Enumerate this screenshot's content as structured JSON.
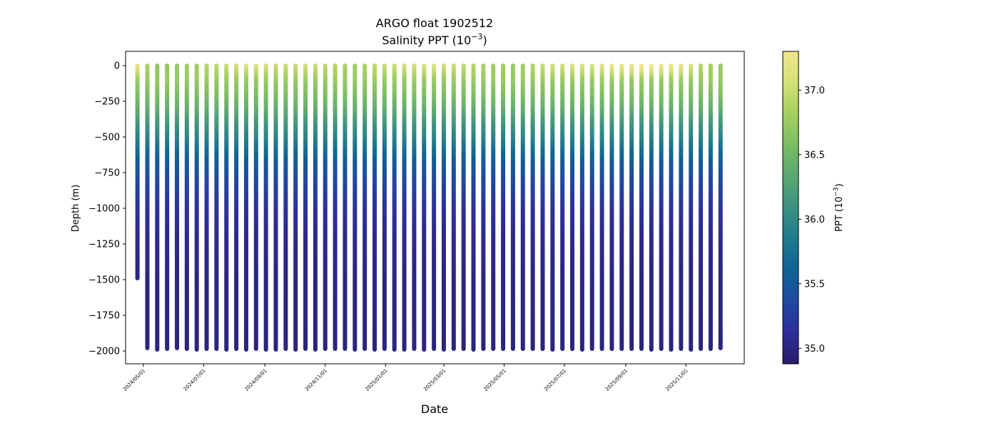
{
  "chart_data": {
    "type": "scatter",
    "title": "ARGO float 1902512",
    "subtitle": {
      "prefix": "Salinity PPT (10",
      "exponent": "−3",
      "suffix": ")"
    },
    "xlabel": "Date",
    "ylabel": "Depth (m)",
    "colorbar_label": {
      "prefix": "PPT (10",
      "exponent": "−3",
      "suffix": ")"
    },
    "x_tick_labels": [
      "2024/05/01",
      "2024/07/01",
      "2024/09/01",
      "2024/11/01",
      "2025/01/01",
      "2025/03/01",
      "2025/05/01",
      "2025/07/01",
      "2025/09/01",
      "2025/11/01"
    ],
    "xlim": [
      "2024-04-13",
      "2025-12-30"
    ],
    "ylim": [
      -2090,
      100
    ],
    "y_ticks": [
      0,
      -250,
      -500,
      -750,
      -1000,
      -1250,
      -1500,
      -1750,
      -2000
    ],
    "y_tick_labels": [
      "0",
      "−250",
      "−500",
      "−750",
      "−1000",
      "−1250",
      "−1500",
      "−1750",
      "−2000"
    ],
    "colorbar": {
      "range": [
        34.88,
        37.3
      ],
      "ticks": [
        35.0,
        35.5,
        36.0,
        36.5,
        37.0
      ],
      "tick_labels": [
        "35.0",
        "35.5",
        "36.0",
        "36.5",
        "37.0"
      ],
      "colormap": "haline",
      "colors": [
        "#2a1d6b",
        "#2d2e9a",
        "#1f4aa0",
        "#0f6294",
        "#1f7a8c",
        "#3b9181",
        "#5aa872",
        "#79bd64",
        "#a5cf60",
        "#d4e07a",
        "#f2e58c"
      ]
    },
    "profiles": {
      "dates": [
        "2024-04-25",
        "2024-05-05",
        "2024-05-15",
        "2024-05-25",
        "2024-06-04",
        "2024-06-14",
        "2024-06-24",
        "2024-07-04",
        "2024-07-14",
        "2024-07-24",
        "2024-08-03",
        "2024-08-13",
        "2024-08-23",
        "2024-09-02",
        "2024-09-12",
        "2024-09-22",
        "2024-10-02",
        "2024-10-12",
        "2024-10-22",
        "2024-11-01",
        "2024-11-11",
        "2024-11-21",
        "2024-12-01",
        "2024-12-11",
        "2024-12-21",
        "2024-12-31",
        "2025-01-10",
        "2025-01-20",
        "2025-01-30",
        "2025-02-09",
        "2025-02-19",
        "2025-03-01",
        "2025-03-11",
        "2025-03-21",
        "2025-03-31",
        "2025-04-10",
        "2025-04-20",
        "2025-04-30",
        "2025-05-10",
        "2025-05-20",
        "2025-05-30",
        "2025-06-09",
        "2025-06-19",
        "2025-06-29",
        "2025-07-09",
        "2025-07-19",
        "2025-07-29",
        "2025-08-08",
        "2025-08-18",
        "2025-08-28",
        "2025-09-07",
        "2025-09-17",
        "2025-09-27",
        "2025-10-07",
        "2025-10-17",
        "2025-10-27",
        "2025-11-06",
        "2025-11-16",
        "2025-11-26",
        "2025-12-06"
      ],
      "max_depth": [
        -1490,
        -1980,
        -1990,
        -1985,
        -1980,
        -1985,
        -1990,
        -1985,
        -1985,
        -1990,
        -1985,
        -1990,
        -1985,
        -1990,
        -1990,
        -1985,
        -1990,
        -1985,
        -1990,
        -1985,
        -1985,
        -1985,
        -1990,
        -1985,
        -1990,
        -1985,
        -1990,
        -1990,
        -1985,
        -1990,
        -1985,
        -1990,
        -1985,
        -1985,
        -1990,
        -1985,
        -1985,
        -1985,
        -1985,
        -1985,
        -1985,
        -1985,
        -1990,
        -1985,
        -1985,
        -1990,
        -1985,
        -1985,
        -1985,
        -1985,
        -1985,
        -1985,
        -1990,
        -1985,
        -1990,
        -1985,
        -1990,
        -1985,
        -1985,
        -1980
      ],
      "surface_salinity": [
        37.2,
        36.85,
        36.7,
        36.7,
        36.75,
        36.8,
        36.8,
        36.9,
        36.95,
        37.0,
        37.05,
        37.1,
        37.1,
        37.05,
        37.0,
        37.0,
        37.0,
        37.05,
        37.0,
        36.95,
        36.9,
        36.85,
        36.8,
        36.85,
        36.95,
        37.0,
        37.0,
        37.05,
        37.05,
        37.1,
        37.1,
        37.05,
        37.0,
        36.95,
        36.9,
        36.85,
        36.8,
        36.8,
        36.75,
        36.8,
        36.9,
        37.0,
        37.05,
        37.05,
        37.1,
        37.1,
        37.1,
        37.15,
        37.2,
        37.2,
        37.25,
        37.3,
        37.3,
        37.25,
        37.25,
        37.2,
        37.1,
        36.9,
        36.8,
        36.75
      ]
    },
    "profile_model": {
      "depth_m": [
        0,
        -50,
        -100,
        -200,
        -300,
        -400,
        -500,
        -600,
        -700,
        -800,
        -900,
        -1000,
        -1200,
        -1500,
        -2000
      ],
      "salinity_below_100m": [
        36.75,
        36.6,
        36.4,
        36.15,
        35.95,
        35.7,
        35.5,
        35.35,
        35.25,
        35.15,
        35.05,
        35.0,
        34.98
      ]
    },
    "grid": false
  }
}
